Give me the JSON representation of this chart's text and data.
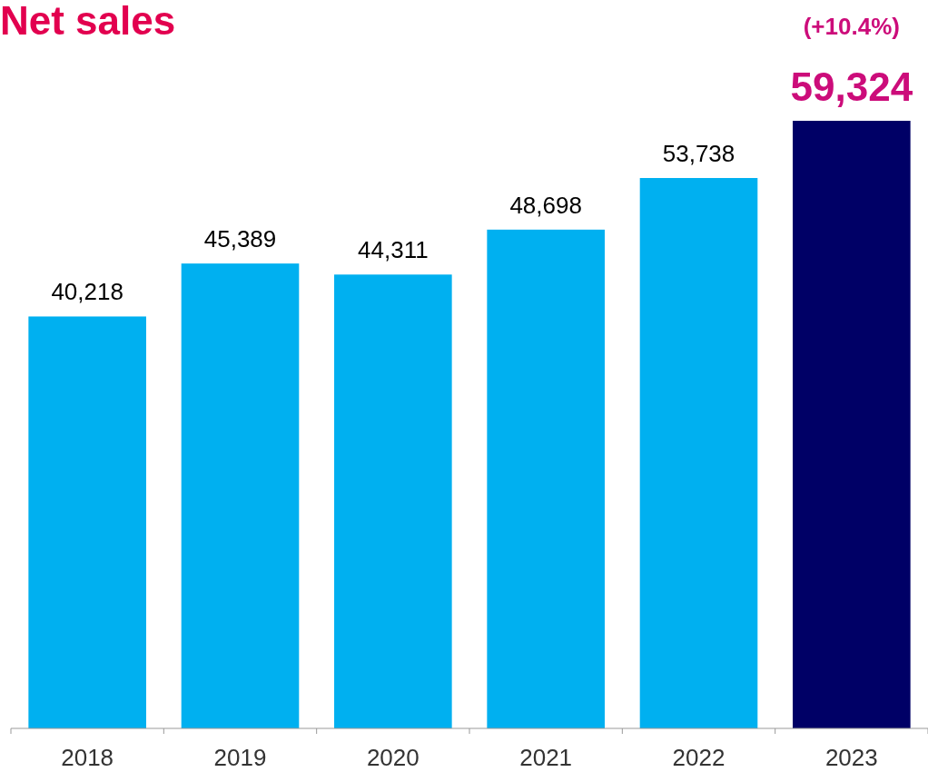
{
  "chart_data": {
    "type": "bar",
    "title": "Net sales",
    "categories": [
      "2018",
      "2019",
      "2020",
      "2021",
      "2022",
      "2023"
    ],
    "values": [
      40218,
      45389,
      44311,
      48698,
      53738,
      59324
    ],
    "value_labels": [
      "40,218",
      "45,389",
      "44,311",
      "48,698",
      "53,738",
      "59,324"
    ],
    "colors": [
      "#00b0f0",
      "#00b0f0",
      "#00b0f0",
      "#00b0f0",
      "#00b0f0",
      "#000066"
    ],
    "annotations": [
      "(+10.4%)"
    ]
  }
}
